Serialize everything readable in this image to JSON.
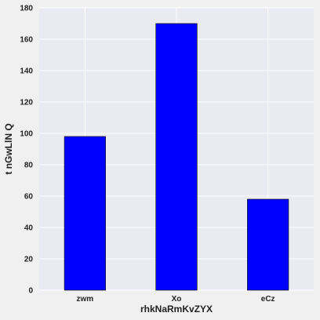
{
  "chart_data": {
    "type": "bar",
    "categories": [
      "zwm",
      "Xo",
      "eCz"
    ],
    "values": [
      98,
      170,
      58
    ],
    "title": "",
    "xlabel": "rhkNaRmKvZYX",
    "ylabel": "t nGwLlN  Q",
    "ylim": [
      0,
      180
    ],
    "yticks": [
      0,
      20,
      40,
      60,
      80,
      100,
      120,
      140,
      160,
      180
    ],
    "grid": true,
    "legend": "none",
    "colors": {
      "bar": "#0000ff",
      "bar_edge": "#000000",
      "plot_bg": "#eaeaf2",
      "page_bg": "#f0f0f0",
      "grid": "#ffffff"
    }
  }
}
